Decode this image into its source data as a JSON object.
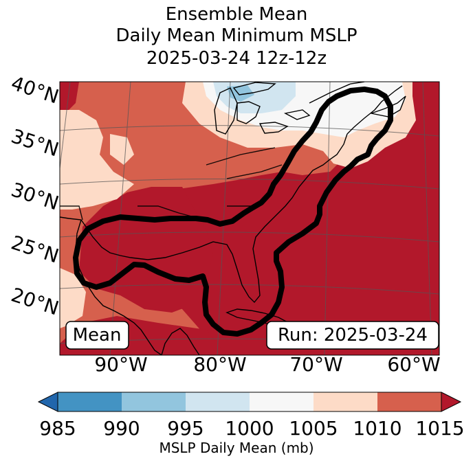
{
  "title": {
    "line1": "Ensemble Mean",
    "line2": "Daily Mean Minimum MSLP",
    "line3": "2025-03-24 12z-12z"
  },
  "map": {
    "lat_labels": [
      "40°N",
      "35°N",
      "30°N",
      "25°N",
      "20°N"
    ],
    "lon_labels": [
      "90°W",
      "80°W",
      "70°W",
      "60°W"
    ],
    "box_left": "Mean",
    "box_right": "Run: 2025-03-24"
  },
  "colorbar": {
    "ticks": [
      "985",
      "990",
      "995",
      "1000",
      "1005",
      "1010",
      "1015"
    ],
    "label": "MSLP Daily Mean (mb)",
    "colors": [
      "#2166ac",
      "#4393c3",
      "#92c5de",
      "#d1e5f0",
      "#f7f7f7",
      "#fddbc7",
      "#d6604d",
      "#b2182b"
    ]
  }
}
